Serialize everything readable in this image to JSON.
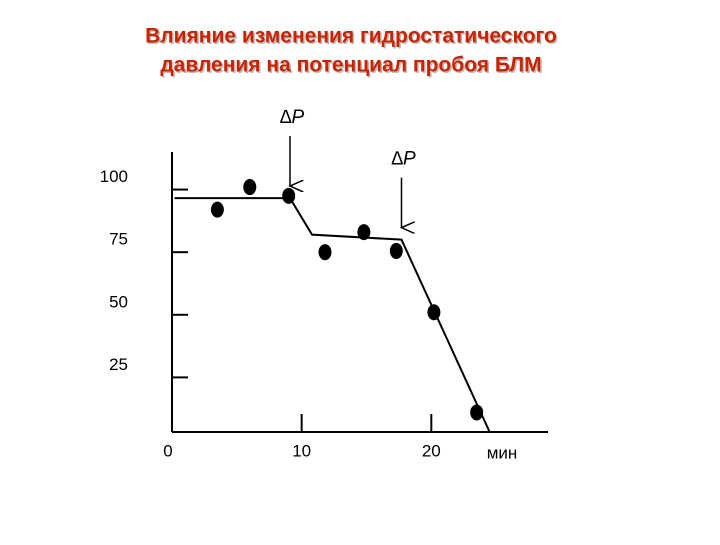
{
  "chart_data": {
    "type": "scatter",
    "title": [
      "Влияние изменения гидростатического",
      "давления на потенциал пробоя БЛМ"
    ],
    "x_label": "мин",
    "xlim": [
      0,
      29
    ],
    "xticks": [
      0,
      10,
      20
    ],
    "ylim": [
      0,
      115
    ],
    "yticks": [
      25,
      50,
      75,
      100
    ],
    "points": {
      "color": "#000000",
      "x": [
        3.5,
        6,
        9,
        11.8,
        14.8,
        17.3,
        20.2,
        23.5
      ],
      "y": [
        92,
        101,
        97.5,
        75,
        83,
        75.5,
        51,
        11
      ]
    },
    "line": {
      "color": "#000000",
      "x": [
        0.2,
        9.1,
        10.8,
        17.7,
        24.5
      ],
      "y": [
        96.6,
        96.6,
        82,
        80,
        3.2
      ]
    },
    "annotations": [
      {
        "text": "∆P",
        "x": 9.1,
        "y": 96.6
      },
      {
        "text": "∆P",
        "x": 17.7,
        "y": 80
      }
    ]
  }
}
